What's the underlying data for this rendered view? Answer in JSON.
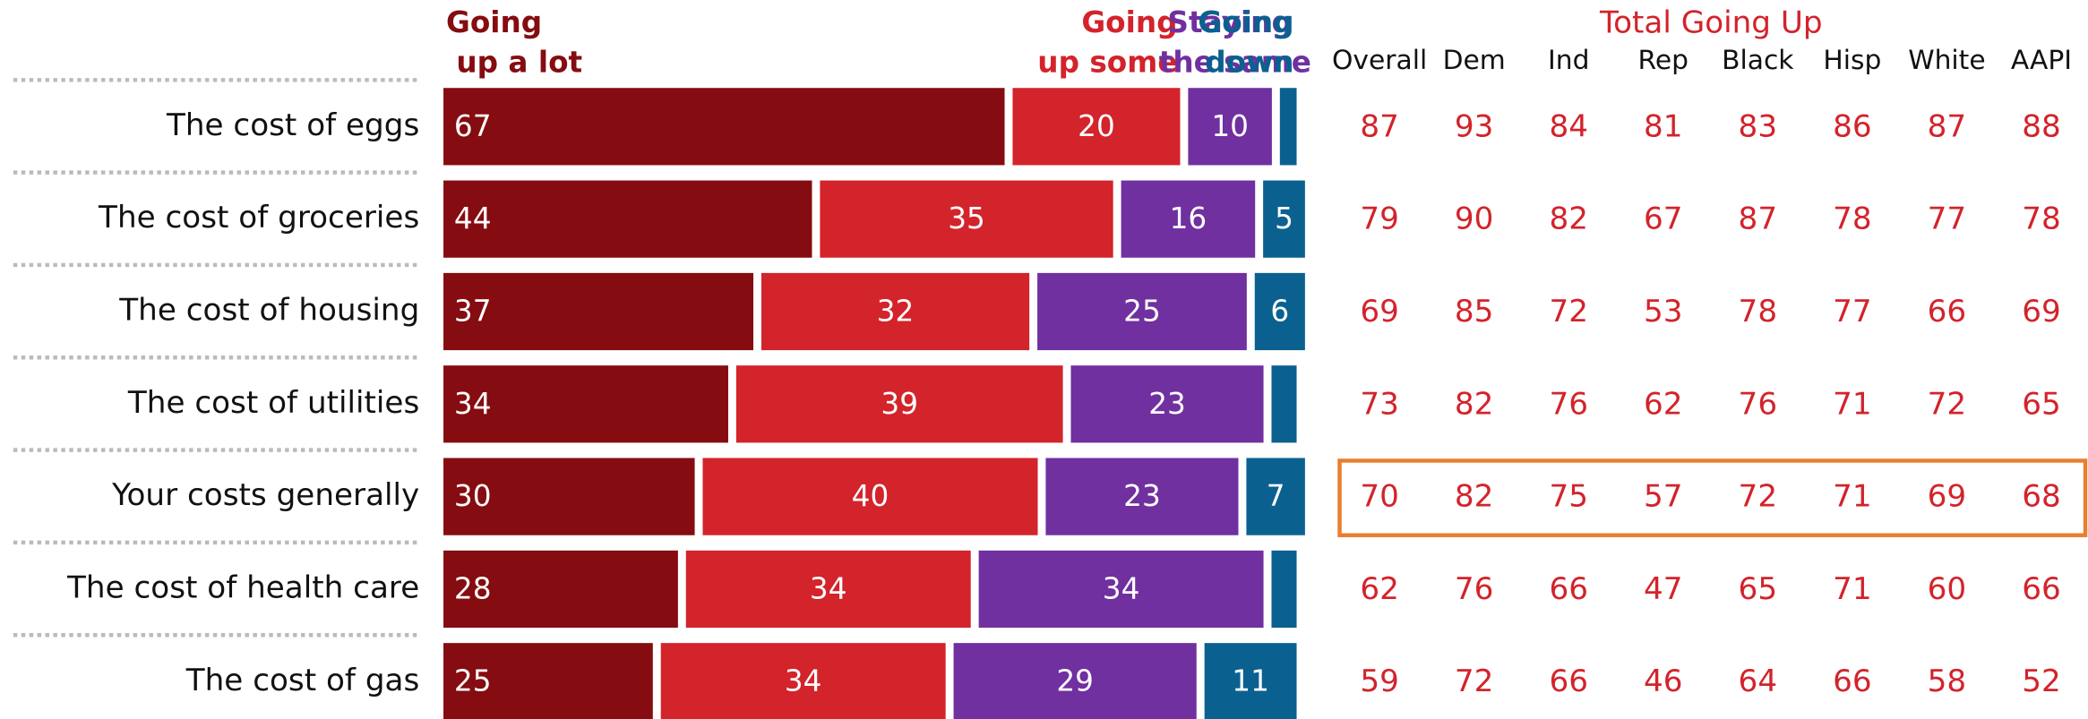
{
  "chart_data": {
    "type": "bar",
    "orientation": "horizontal",
    "stacked": true,
    "categories": [
      "The cost of eggs",
      "The cost of groceries",
      "The cost of housing",
      "The cost of utilities",
      "Your costs generally",
      "The cost of health care",
      "The cost of gas"
    ],
    "series": [
      {
        "name": "Going up a lot",
        "color": "#850c10",
        "values": [
          67,
          44,
          37,
          34,
          30,
          28,
          25
        ]
      },
      {
        "name": "Going up some",
        "color": "#d3232b",
        "values": [
          20,
          35,
          32,
          39,
          40,
          34,
          34
        ]
      },
      {
        "name": "Staying the same",
        "color": "#7030a0",
        "values": [
          10,
          16,
          25,
          23,
          23,
          34,
          29
        ]
      },
      {
        "name": "Going down",
        "color": "#0a6190",
        "values": [
          2,
          5,
          6,
          3,
          7,
          3,
          11
        ]
      }
    ],
    "table": {
      "title": "Total Going Up",
      "color": "#d3232b",
      "columns": [
        "Overall",
        "Dem",
        "Ind",
        "Rep",
        "Black",
        "Hisp",
        "White",
        "AAPI"
      ],
      "rows": [
        [
          87,
          93,
          84,
          81,
          83,
          86,
          87,
          88
        ],
        [
          79,
          90,
          82,
          67,
          87,
          78,
          77,
          78
        ],
        [
          69,
          85,
          72,
          53,
          78,
          77,
          66,
          69
        ],
        [
          73,
          82,
          76,
          62,
          76,
          71,
          72,
          65
        ],
        [
          70,
          82,
          75,
          57,
          72,
          71,
          69,
          68
        ],
        [
          62,
          76,
          66,
          47,
          65,
          71,
          60,
          66
        ],
        [
          59,
          72,
          66,
          46,
          64,
          66,
          58,
          52
        ]
      ],
      "highlight": "Your costs generally",
      "highlight_color": "#e87e2e"
    }
  }
}
